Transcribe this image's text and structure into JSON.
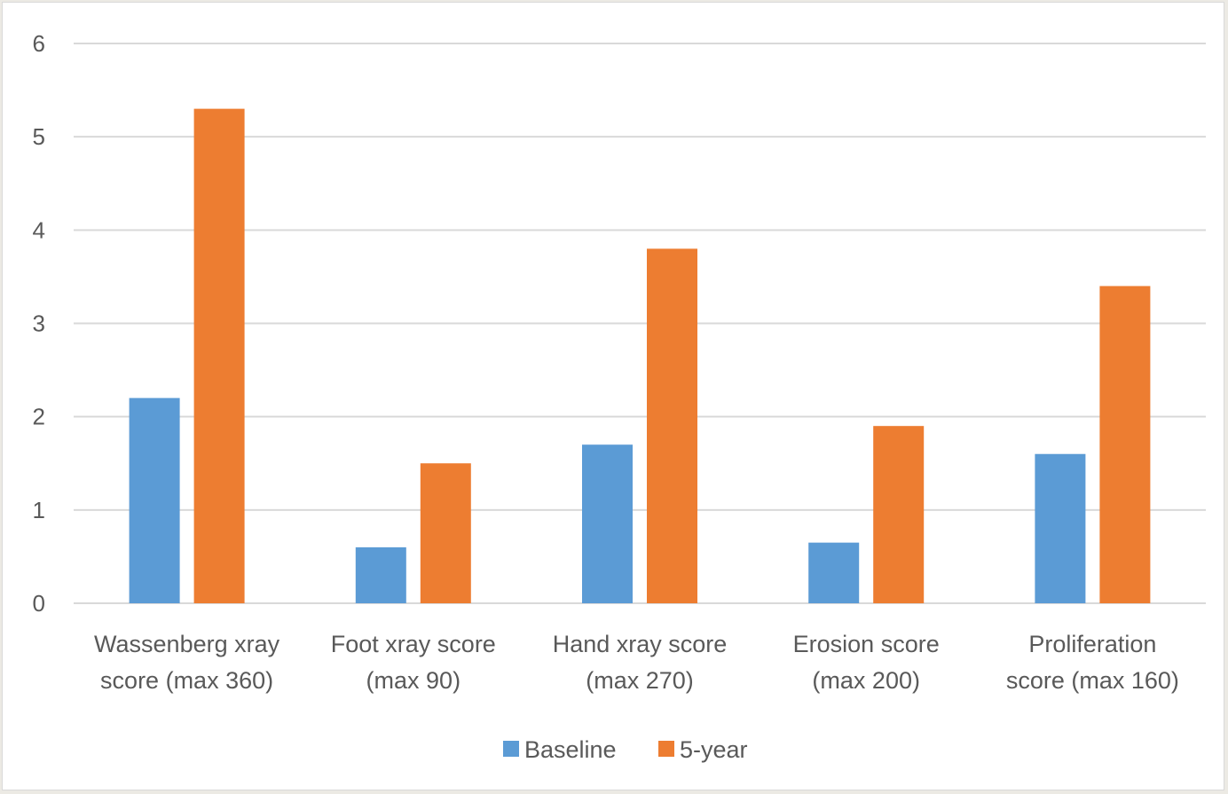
{
  "chart_data": {
    "type": "bar",
    "title": "",
    "xlabel": "",
    "ylabel": "",
    "ylim": [
      0,
      6
    ],
    "yticks": [
      0,
      1,
      2,
      3,
      4,
      5,
      6
    ],
    "grid": true,
    "legend_position": "bottom",
    "categories": [
      [
        "Wassenberg xray",
        "score (max 360)"
      ],
      [
        "Foot xray score",
        "(max 90)"
      ],
      [
        "Hand xray score",
        "(max 270)"
      ],
      [
        "Erosion score",
        "(max 200)"
      ],
      [
        "Proliferation",
        "score (max 160)"
      ]
    ],
    "series": [
      {
        "name": "Baseline",
        "color": "#5b9bd5",
        "values": [
          2.2,
          0.6,
          1.7,
          0.65,
          1.6
        ]
      },
      {
        "name": "5-year",
        "color": "#ed7d31",
        "values": [
          5.3,
          1.5,
          3.8,
          1.9,
          3.4
        ]
      }
    ]
  }
}
